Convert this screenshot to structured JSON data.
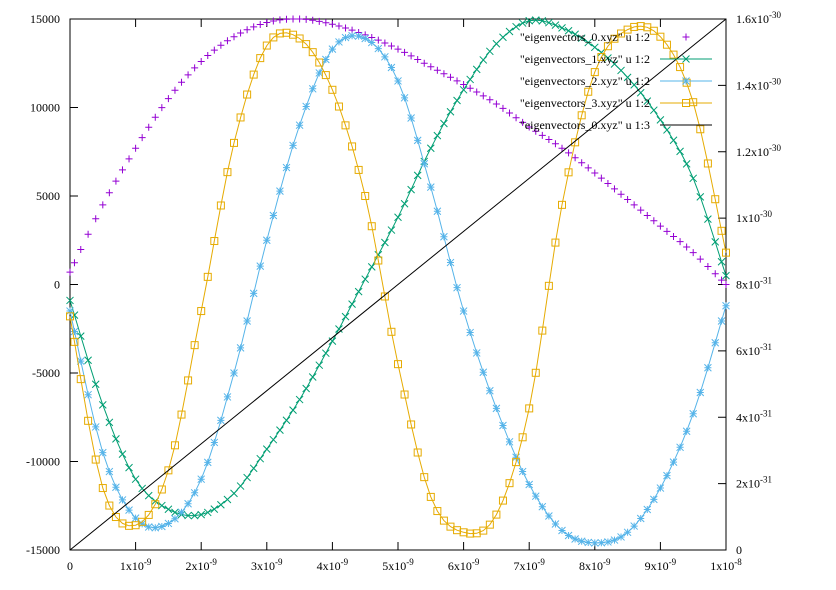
{
  "chart_data": {
    "type": "line",
    "title": "",
    "xlabel": "",
    "ylabel": "",
    "y2label": "",
    "xlim": [
      0,
      1e-08
    ],
    "ylim": [
      -15000,
      15000
    ],
    "y2lim": [
      0,
      1.6e-30
    ],
    "grid": false,
    "legend_position": "top-right",
    "x_ticks": [
      {
        "value": 0,
        "label": "0"
      },
      {
        "value": 1e-09,
        "label": "1x10",
        "exp": "-9"
      },
      {
        "value": 2e-09,
        "label": "2x10",
        "exp": "-9"
      },
      {
        "value": 3e-09,
        "label": "3x10",
        "exp": "-9"
      },
      {
        "value": 4e-09,
        "label": "4x10",
        "exp": "-9"
      },
      {
        "value": 5e-09,
        "label": "5x10",
        "exp": "-9"
      },
      {
        "value": 6e-09,
        "label": "6x10",
        "exp": "-9"
      },
      {
        "value": 7e-09,
        "label": "7x10",
        "exp": "-9"
      },
      {
        "value": 8e-09,
        "label": "8x10",
        "exp": "-9"
      },
      {
        "value": 9e-09,
        "label": "9x10",
        "exp": "-9"
      },
      {
        "value": 1e-08,
        "label": "1x10",
        "exp": "-8"
      }
    ],
    "y_ticks": [
      {
        "value": -15000,
        "label": "-15000"
      },
      {
        "value": -10000,
        "label": "-10000"
      },
      {
        "value": -5000,
        "label": "-5000"
      },
      {
        "value": 0,
        "label": "0"
      },
      {
        "value": 5000,
        "label": "5000"
      },
      {
        "value": 10000,
        "label": "10000"
      },
      {
        "value": 15000,
        "label": "15000"
      }
    ],
    "y2_ticks": [
      {
        "value": 0,
        "label": "0"
      },
      {
        "value": 2e-31,
        "label": "2x10",
        "exp": "-31"
      },
      {
        "value": 4e-31,
        "label": "4x10",
        "exp": "-31"
      },
      {
        "value": 6e-31,
        "label": "6x10",
        "exp": "-31"
      },
      {
        "value": 8e-31,
        "label": "8x10",
        "exp": "-31"
      },
      {
        "value": 1e-30,
        "label": "1x10",
        "exp": "-30"
      },
      {
        "value": 1.2e-30,
        "label": "1.2x10",
        "exp": "-30"
      },
      {
        "value": 1.4e-30,
        "label": "1.4x10",
        "exp": "-30"
      },
      {
        "value": 1.6e-30,
        "label": "1.6x10",
        "exp": "-30"
      }
    ],
    "series": [
      {
        "name": "\"eigenvectors_0.xyz\" u 1:2",
        "axis": "y",
        "marker": "plus",
        "line": false,
        "color": "#9400d3",
        "x": [
          0,
          5e-10,
          1e-09,
          1.5e-09,
          2e-09,
          2.5e-09,
          3e-09,
          3.5e-09,
          4e-09,
          4.5e-09,
          5e-09,
          5.5e-09,
          6e-09,
          6.5e-09,
          7e-09,
          7.5e-09,
          8e-09,
          8.5e-09,
          9e-09,
          9.5e-09,
          1e-08
        ],
        "y": [
          700,
          4500,
          7700,
          10500,
          12600,
          14000,
          14800,
          15000,
          14700,
          14100,
          13300,
          12300,
          11300,
          10200,
          8900,
          7700,
          6300,
          4800,
          3300,
          1800,
          0
        ]
      },
      {
        "name": "\"eigenvectors_1.xyz\" u 1:2",
        "axis": "y",
        "marker": "x",
        "line": true,
        "color": "#009e73",
        "x": [
          0,
          5e-10,
          1e-09,
          1.5e-09,
          2e-09,
          2.5e-09,
          3e-09,
          3.5e-09,
          4e-09,
          4.5e-09,
          5e-09,
          5.5e-09,
          6e-09,
          6.5e-09,
          7e-09,
          7.5e-09,
          8e-09,
          8.5e-09,
          9e-09,
          9.5e-09,
          1e-08
        ],
        "y": [
          -900,
          -6800,
          -11000,
          -12700,
          -13000,
          -11800,
          -9300,
          -6500,
          -3200,
          300,
          3800,
          7700,
          11000,
          13600,
          14900,
          14500,
          13400,
          11700,
          9300,
          6000,
          500
        ]
      },
      {
        "name": "\"eigenvectors_2.xyz\" u 1:2",
        "axis": "y",
        "marker": "star",
        "line": true,
        "color": "#56b4e9",
        "x": [
          0,
          5e-10,
          1e-09,
          1.5e-09,
          2e-09,
          2.5e-09,
          3e-09,
          3.5e-09,
          4e-09,
          4.5e-09,
          5e-09,
          5.5e-09,
          6e-09,
          6.5e-09,
          7e-09,
          7.5e-09,
          8e-09,
          8.5e-09,
          9e-09,
          9.5e-09,
          1e-08
        ],
        "y": [
          -1500,
          -9500,
          -13200,
          -13500,
          -11000,
          -5000,
          2500,
          9000,
          13300,
          13900,
          11500,
          5500,
          -1500,
          -7000,
          -11300,
          -13900,
          -14600,
          -14000,
          -11500,
          -7300,
          -1200
        ]
      },
      {
        "name": "\"eigenvectors_3.xyz\" u 1:2",
        "axis": "y",
        "marker": "square",
        "line": true,
        "color": "#e6ab02",
        "x": [
          0,
          5e-10,
          1e-09,
          1.5e-09,
          2e-09,
          2.5e-09,
          3e-09,
          3.5e-09,
          4e-09,
          4.5e-09,
          5e-09,
          5.5e-09,
          6e-09,
          6.5e-09,
          7e-09,
          7.5e-09,
          8e-09,
          8.5e-09,
          9e-09,
          9.5e-09,
          1e-08
        ],
        "y": [
          -1800,
          -11500,
          -13600,
          -10500,
          -1500,
          8000,
          13500,
          13900,
          11000,
          5000,
          -4500,
          -12000,
          -14000,
          -13000,
          -7000,
          4500,
          12000,
          14400,
          14000,
          10300,
          1800
        ]
      },
      {
        "name": "\"eigenvectors_0.xyz\" u 1:3",
        "axis": "y2",
        "marker": "none",
        "line": true,
        "color": "#000000",
        "x": [
          0,
          1e-08
        ],
        "y": [
          0,
          1.6e-30
        ]
      }
    ]
  }
}
